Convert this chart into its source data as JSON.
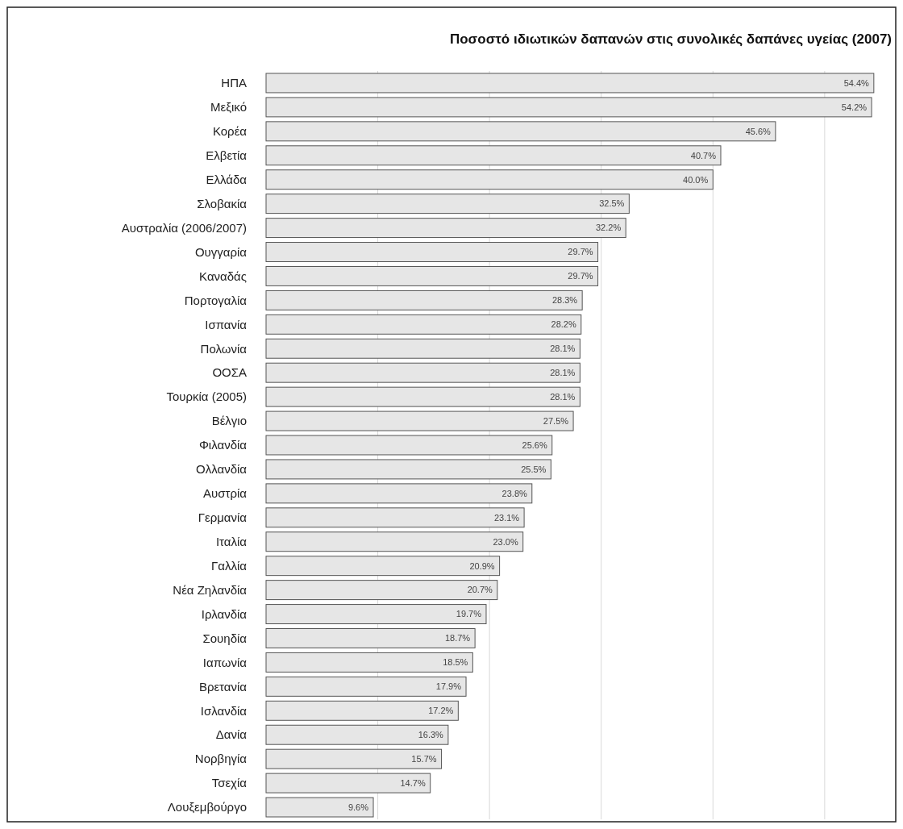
{
  "chart_data": {
    "type": "bar",
    "orientation": "horizontal",
    "title": "Ποσοστό ιδιωτικών δαπανών στις συνολικές δαπάνες υγείας (2007)",
    "categories": [
      "ΗΠΑ",
      "Μεξικό",
      "Κορέα",
      "Ελβετία",
      "Ελλάδα",
      "Σλοβακία",
      "Αυστραλία (2006/2007)",
      "Ουγγαρία",
      "Καναδάς",
      "Πορτογαλία",
      "Ισπανία",
      "Πολωνία",
      "ΟΟΣΑ",
      "Τουρκία (2005)",
      "Βέλγιο",
      "Φιλανδία",
      "Ολλανδία",
      "Αυστρία",
      "Γερμανία",
      "Ιταλία",
      "Γαλλία",
      "Νέα Ζηλανδία",
      "Ιρλανδία",
      "Σουηδία",
      "Ιαπωνία",
      "Βρετανία",
      "Ισλανδία",
      "Δανία",
      "Νορβηγία",
      "Τσεχία",
      "Λουξεμβούργο"
    ],
    "values": [
      54.4,
      54.2,
      45.6,
      40.7,
      40.0,
      32.5,
      32.2,
      29.7,
      29.7,
      28.3,
      28.2,
      28.1,
      28.1,
      28.1,
      27.5,
      25.6,
      25.5,
      23.8,
      23.1,
      23.0,
      20.9,
      20.7,
      19.7,
      18.7,
      18.5,
      17.9,
      17.2,
      16.3,
      15.7,
      14.7,
      9.6
    ],
    "value_labels": [
      "54.4%",
      "54.2%",
      "45.6%",
      "40.7%",
      "40.0%",
      "32.5%",
      "32.2%",
      "29.7%",
      "29.7%",
      "28.3%",
      "28.2%",
      "28.1%",
      "28.1%",
      "28.1%",
      "27.5%",
      "25.6%",
      "25.5%",
      "23.8%",
      "23.1%",
      "23.0%",
      "20.9%",
      "20.7%",
      "19.7%",
      "18.7%",
      "18.5%",
      "17.9%",
      "17.2%",
      "16.3%",
      "15.7%",
      "14.7%",
      "9.6%"
    ],
    "color": "#e6e6e6",
    "xlim": [
      0,
      56
    ],
    "xticks": [
      {
        "value": 10,
        "label": null
      },
      {
        "value": 20,
        "label": null
      },
      {
        "value": 30,
        "label": null
      },
      {
        "value": 40,
        "label": null
      },
      {
        "value": 50,
        "label": null
      }
    ],
    "tick_labels": "y",
    "grid": "x"
  }
}
